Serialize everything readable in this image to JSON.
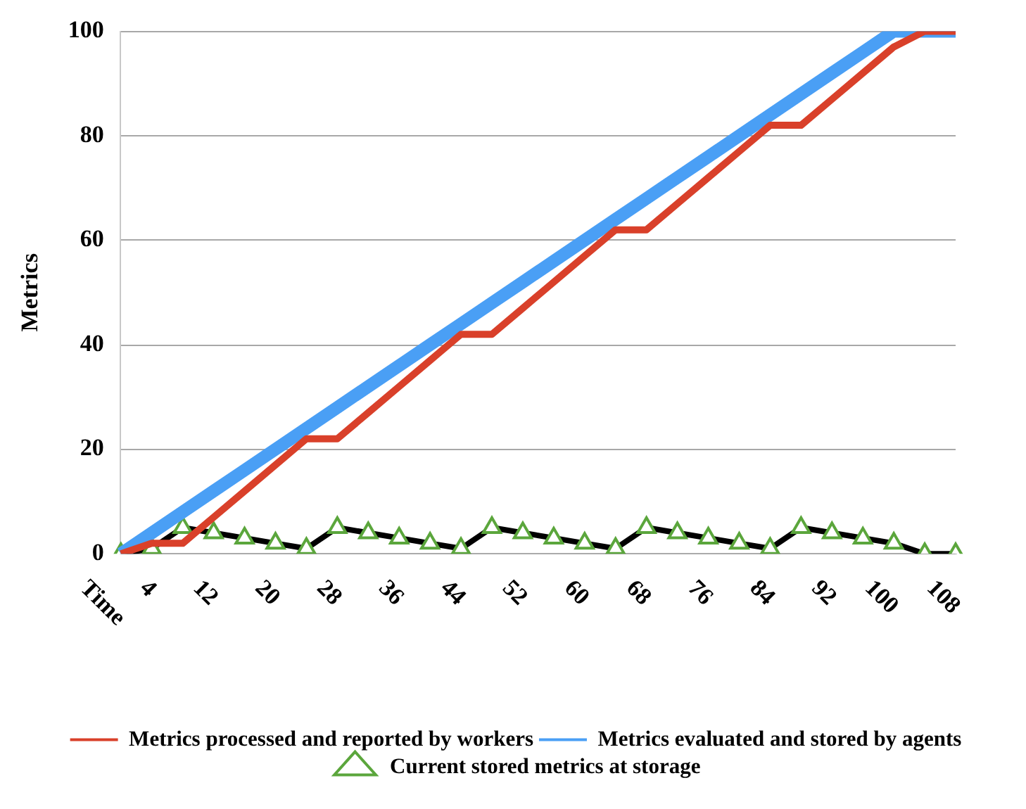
{
  "chart_data": {
    "type": "line",
    "ylabel": "Metrics",
    "categories": [
      "Time",
      "4",
      null,
      "12",
      null,
      "20",
      null,
      "28",
      null,
      "36",
      null,
      "44",
      null,
      "52",
      null,
      "60",
      null,
      "68",
      null,
      "76",
      null,
      "84",
      null,
      "92",
      null,
      "100",
      null,
      "108"
    ],
    "series": [
      {
        "name": "Metrics processed and reported by workers",
        "color": "#d9402a",
        "marker": "none",
        "values": [
          0,
          2,
          2,
          7,
          12,
          17,
          22,
          22,
          27,
          32,
          37,
          42,
          42,
          47,
          52,
          57,
          62,
          62,
          67,
          72,
          77,
          82,
          82,
          87,
          92,
          97,
          100,
          100
        ]
      },
      {
        "name": "Metrics evaluated and stored by agents",
        "color": "#4a9ff5",
        "marker": "none",
        "values": [
          0,
          4,
          8,
          12,
          16,
          20,
          24,
          28,
          32,
          36,
          40,
          44,
          48,
          52,
          56,
          60,
          64,
          68,
          72,
          76,
          80,
          84,
          88,
          92,
          96,
          100,
          100,
          100
        ]
      },
      {
        "name": "Current stored metrics at storage",
        "color": "#5ba63c",
        "marker": "triangle",
        "values": [
          0,
          1,
          5,
          4,
          3,
          2,
          1,
          5,
          4,
          3,
          2,
          1,
          5,
          4,
          3,
          2,
          1,
          5,
          4,
          3,
          2,
          1,
          5,
          4,
          3,
          2,
          0,
          0
        ]
      }
    ],
    "ylim": [
      0,
      100
    ],
    "yticks": [
      0,
      20,
      40,
      60,
      80,
      100
    ],
    "grid": "y",
    "legend": "bottom"
  }
}
